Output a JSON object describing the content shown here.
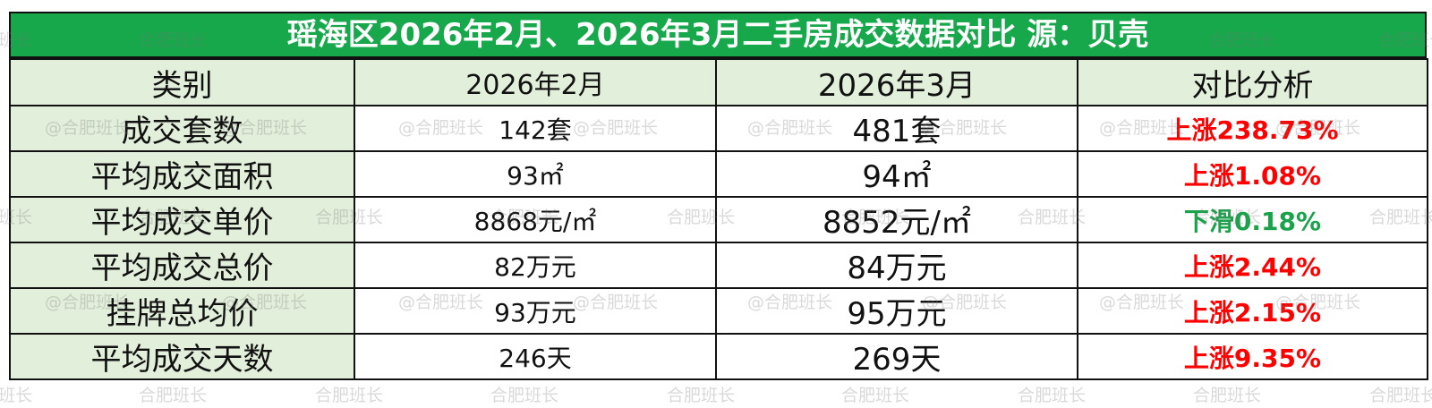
{
  "title": "瑶海区2026年2月、2026年3月二手房成交数据对比 源：贝壳",
  "headers": [
    "类别",
    "2026年2月",
    "2026年3月",
    "对比分析"
  ],
  "rows": [
    {
      "category": "成交套数",
      "feb": "142套",
      "mar": "481套",
      "comparison": "上涨238.73%",
      "trend": "up"
    },
    {
      "category": "平均成交面积",
      "feb": "93㎡",
      "mar": "94㎡",
      "comparison": "上涨1.08%",
      "trend": "up"
    },
    {
      "category": "平均成交单价",
      "feb": "8868元/㎡",
      "mar": "8852元/㎡",
      "comparison": "下滑0.18%",
      "trend": "down"
    },
    {
      "category": "平均成交总价",
      "feb": "82万元",
      "mar": "84万元",
      "comparison": "上涨2.44%",
      "trend": "up"
    },
    {
      "category": "挂牌总均价",
      "feb": "93万元",
      "mar": "95万元",
      "comparison": "上涨2.15%",
      "trend": "up"
    },
    {
      "category": "平均成交天数",
      "feb": "246天",
      "mar": "269天",
      "comparison": "上涨9.35%",
      "trend": "up"
    }
  ],
  "watermark": {
    "plain": "合肥班长",
    "at": "@合肥班长"
  },
  "colors": {
    "title_bg": "#18a84c",
    "label_bg": "#e2efda",
    "up": "#ff0000",
    "down": "#1aa34a"
  }
}
